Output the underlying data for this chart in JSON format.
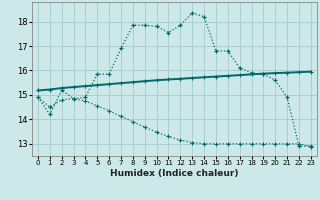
{
  "xlabel": "Humidex (Indice chaleur)",
  "bg_color": "#cce8e8",
  "grid_color": "#aacfcf",
  "line_color1": "#006868",
  "line_color2": "#006868",
  "line_color3": "#006868",
  "xlim": [
    -0.5,
    23.5
  ],
  "ylim": [
    12.5,
    18.8
  ],
  "yticks": [
    13,
    14,
    15,
    16,
    17,
    18
  ],
  "xticks": [
    0,
    1,
    2,
    3,
    4,
    5,
    6,
    7,
    8,
    9,
    10,
    11,
    12,
    13,
    14,
    15,
    16,
    17,
    18,
    19,
    20,
    21,
    22,
    23
  ],
  "line1_x": [
    0,
    1,
    2,
    3,
    4,
    5,
    6,
    7,
    8,
    9,
    10,
    11,
    12,
    13,
    14,
    15,
    16,
    17,
    18,
    19,
    20,
    21,
    22,
    23
  ],
  "line1_y": [
    14.9,
    14.2,
    15.2,
    14.85,
    14.9,
    15.85,
    15.85,
    16.9,
    17.85,
    17.85,
    17.8,
    17.55,
    17.85,
    18.35,
    18.2,
    16.8,
    16.8,
    16.1,
    15.9,
    15.85,
    15.6,
    14.9,
    12.9,
    12.9
  ],
  "line2_x": [
    0,
    1,
    2,
    3,
    4,
    5,
    6,
    7,
    8,
    9,
    10,
    11,
    12,
    13,
    14,
    15,
    16,
    17,
    18,
    19,
    20,
    21,
    22,
    23
  ],
  "line2_y": [
    15.18,
    15.22,
    15.28,
    15.32,
    15.36,
    15.4,
    15.44,
    15.48,
    15.52,
    15.56,
    15.6,
    15.63,
    15.66,
    15.69,
    15.72,
    15.75,
    15.78,
    15.81,
    15.84,
    15.87,
    15.89,
    15.91,
    15.93,
    15.95
  ],
  "line3_x": [
    0,
    1,
    2,
    3,
    4,
    5,
    6,
    7,
    8,
    9,
    10,
    11,
    12,
    13,
    14,
    15,
    16,
    17,
    18,
    19,
    20,
    21,
    22,
    23
  ],
  "line3_y": [
    14.9,
    14.5,
    14.8,
    14.85,
    14.75,
    14.55,
    14.35,
    14.12,
    13.9,
    13.68,
    13.47,
    13.3,
    13.15,
    13.05,
    13.0,
    13.0,
    13.0,
    13.0,
    13.0,
    13.0,
    13.0,
    13.0,
    13.0,
    12.88
  ]
}
